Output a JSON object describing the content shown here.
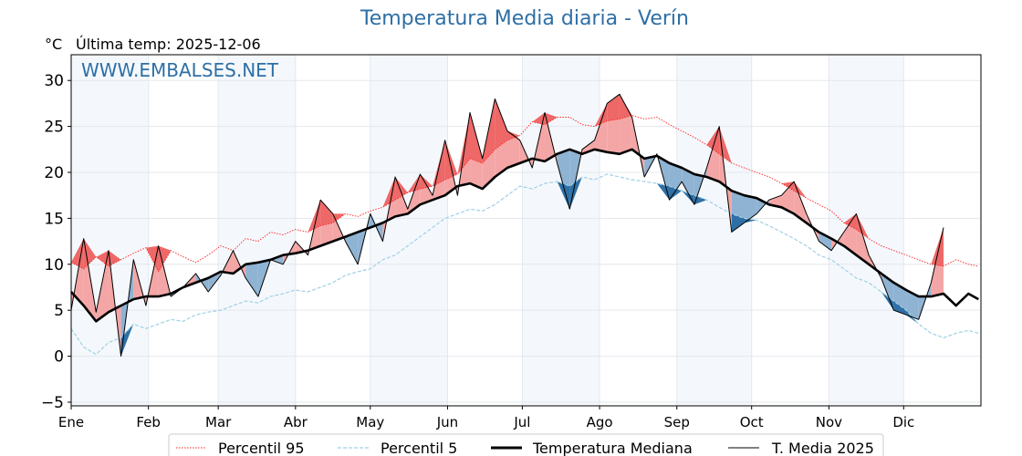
{
  "chart_data": {
    "type": "line",
    "title": "Temperatura Media diaria - Verín",
    "ylabel": "°C",
    "subtitle": "Última temp: 2025-12-06",
    "watermark": "WWW.EMBALSES.NET",
    "ylim": [
      -5.4,
      32.8
    ],
    "xlim": [
      0,
      365
    ],
    "yticks": [
      -5,
      0,
      5,
      10,
      15,
      20,
      25,
      30
    ],
    "ytick_labels": [
      "−5",
      "0",
      "5",
      "10",
      "15",
      "20",
      "25",
      "30"
    ],
    "xticks": [
      0,
      31,
      59,
      90,
      120,
      151,
      181,
      212,
      243,
      273,
      304,
      334
    ],
    "xtick_labels": [
      "Ene",
      "Feb",
      "Mar",
      "Abr",
      "May",
      "Jun",
      "Jul",
      "Ago",
      "Sep",
      "Oct",
      "Nov",
      "Dic"
    ],
    "grid": true,
    "legend": "bottom-center",
    "x_step_days": 5,
    "x": [
      0,
      5,
      10,
      15,
      20,
      25,
      30,
      35,
      40,
      45,
      50,
      55,
      60,
      65,
      70,
      75,
      80,
      85,
      90,
      95,
      100,
      105,
      110,
      115,
      120,
      125,
      130,
      135,
      140,
      145,
      150,
      155,
      160,
      165,
      170,
      175,
      180,
      185,
      190,
      195,
      200,
      205,
      210,
      215,
      220,
      225,
      230,
      235,
      240,
      245,
      250,
      255,
      260,
      265,
      270,
      275,
      280,
      285,
      290,
      295,
      300,
      305,
      310,
      315,
      320,
      325,
      330,
      335,
      340,
      345,
      350,
      355,
      360,
      364
    ],
    "series": [
      {
        "name": "Percentil 95",
        "color": "#ff2020",
        "style": "dotted",
        "values": [
          10.2,
          9.5,
          10.8,
          9.8,
          10.5,
          11.2,
          11.8,
          9.2,
          11.5,
          10.8,
          10.2,
          11.0,
          12.0,
          11.5,
          12.8,
          12.5,
          13.5,
          13.2,
          13.8,
          13.5,
          14.2,
          14.5,
          15.5,
          15.2,
          15.8,
          16.2,
          17.0,
          17.8,
          18.2,
          18.5,
          19.2,
          19.8,
          21.5,
          21.0,
          22.5,
          23.5,
          24.0,
          25.5,
          25.2,
          26.0,
          26.0,
          25.2,
          25.0,
          25.6,
          25.8,
          26.2,
          25.8,
          26.0,
          25.2,
          24.5,
          23.8,
          23.0,
          22.0,
          21.0,
          20.5,
          20.0,
          19.5,
          18.8,
          18.0,
          17.2,
          16.5,
          15.8,
          14.5,
          13.8,
          12.8,
          12.0,
          11.5,
          11.0,
          10.5,
          10.0,
          9.8,
          10.5,
          10.0,
          9.8
        ]
      },
      {
        "name": "Percentil 5",
        "color": "#9fd0e5",
        "style": "dashed",
        "values": [
          3.0,
          1.0,
          0.2,
          1.5,
          2.0,
          3.5,
          3.0,
          3.5,
          4.0,
          3.8,
          4.5,
          4.8,
          5.0,
          5.5,
          6.0,
          5.8,
          6.5,
          6.8,
          7.2,
          7.0,
          7.5,
          8.0,
          8.8,
          9.2,
          9.5,
          10.5,
          11.0,
          12.0,
          13.0,
          14.0,
          15.0,
          15.5,
          16.0,
          15.8,
          16.5,
          17.5,
          18.5,
          18.2,
          18.8,
          19.0,
          18.5,
          19.5,
          19.2,
          19.8,
          19.5,
          19.2,
          19.0,
          18.8,
          18.5,
          18.0,
          17.5,
          17.0,
          16.2,
          15.5,
          15.0,
          14.8,
          14.2,
          13.5,
          12.8,
          12.0,
          11.0,
          10.5,
          9.5,
          8.5,
          8.0,
          7.0,
          6.0,
          5.0,
          3.5,
          2.5,
          2.0,
          2.5,
          2.8,
          2.5
        ]
      },
      {
        "name": "Temperatura Mediana",
        "color": "#000000",
        "style": "solid-thick",
        "values": [
          7.0,
          5.5,
          3.8,
          4.8,
          5.5,
          6.2,
          6.5,
          6.5,
          6.8,
          7.5,
          8.0,
          8.5,
          9.2,
          9.0,
          10.0,
          10.2,
          10.5,
          11.0,
          11.2,
          11.5,
          12.0,
          12.5,
          13.0,
          13.5,
          14.0,
          14.5,
          15.2,
          15.5,
          16.5,
          17.0,
          17.5,
          18.5,
          18.8,
          18.2,
          19.5,
          20.5,
          21.0,
          21.5,
          21.2,
          22.0,
          22.5,
          22.0,
          22.5,
          22.2,
          22.0,
          22.5,
          21.5,
          21.8,
          21.0,
          20.5,
          19.8,
          19.5,
          19.0,
          18.0,
          17.5,
          17.2,
          16.5,
          16.2,
          15.5,
          14.5,
          13.5,
          12.8,
          12.0,
          11.0,
          10.0,
          9.0,
          8.0,
          7.2,
          6.5,
          6.5,
          6.8,
          5.5,
          6.8,
          6.2
        ]
      },
      {
        "name": "T. Media 2025",
        "color": "#000000",
        "style": "solid-thin",
        "values": [
          5.0,
          12.8,
          4.8,
          11.5,
          0.0,
          10.5,
          5.5,
          12.0,
          6.5,
          7.5,
          9.0,
          7.0,
          8.8,
          11.5,
          8.5,
          6.5,
          10.5,
          10.0,
          12.5,
          11.0,
          17.0,
          15.5,
          12.5,
          10.0,
          15.5,
          12.5,
          19.5,
          16.0,
          19.8,
          17.5,
          23.5,
          17.5,
          26.5,
          21.5,
          28.0,
          24.5,
          23.5,
          20.5,
          26.5,
          21.0,
          16.0,
          22.5,
          23.5,
          27.5,
          28.5,
          26.0,
          19.5,
          22.0,
          17.0,
          19.0,
          16.5,
          20.5,
          25.0,
          13.5,
          14.5,
          15.5,
          17.0,
          17.5,
          19.0,
          15.5,
          12.5,
          11.5,
          13.5,
          15.5,
          11.0,
          8.5,
          5.0,
          4.5,
          4.0,
          8.0,
          14.0,
          null,
          null,
          null
        ]
      }
    ],
    "legend_entries": [
      "Percentil 95",
      "Percentil 5",
      "Temperatura Mediana",
      "T. Media 2025"
    ],
    "colors": {
      "title": "#2e6fa5",
      "watermark": "#2e6fa5",
      "above_fill": "#f4a6a6",
      "above_p95_fill": "#ee6868",
      "below_fill": "#8fb3d3",
      "below_p5_fill": "#2e6fa5",
      "month_band": "#f4f8fc",
      "grid": "#e3e8ee"
    }
  }
}
